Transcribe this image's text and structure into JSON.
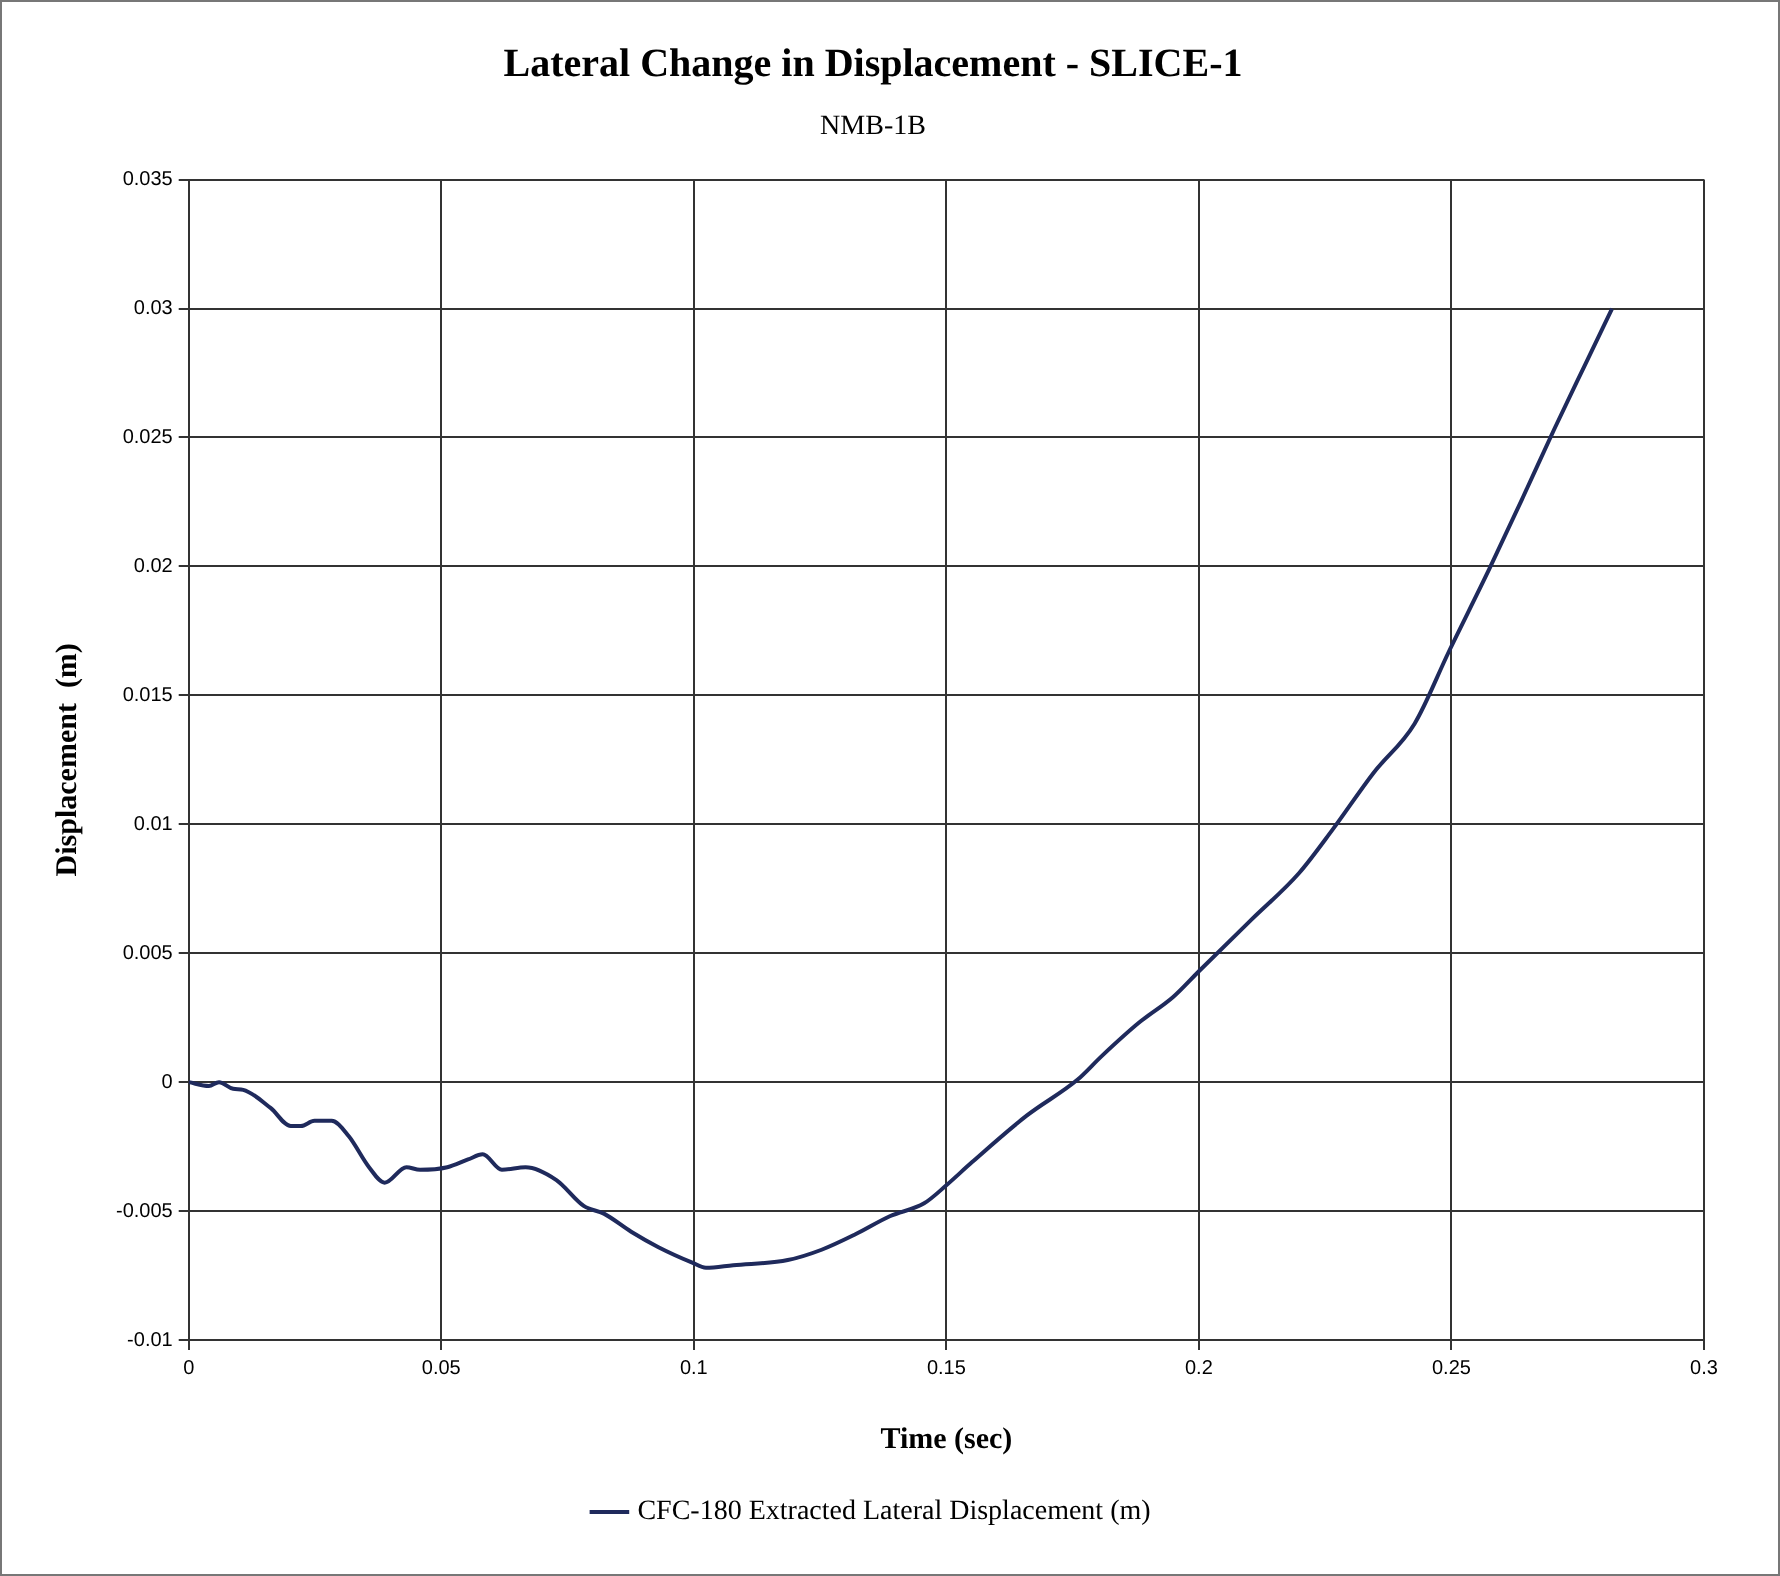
{
  "chart_data": {
    "type": "line",
    "title": "Lateral Change in Displacement - SLICE-1",
    "subtitle": "NMB-1B",
    "xlabel": "Time (sec)",
    "ylabel": "Displacement  (m)",
    "xlim": [
      0,
      0.3
    ],
    "xticks": [
      0,
      0.05,
      0.1,
      0.15,
      0.2,
      0.25,
      0.3
    ],
    "ylim": [
      -0.01,
      0.035
    ],
    "yticks": [
      -0.01,
      -0.005,
      0,
      0.005,
      0.01,
      0.015,
      0.02,
      0.025,
      0.03,
      0.035
    ],
    "grid": true,
    "legend": "bottom",
    "marker": "none",
    "line_style": "solid",
    "series": [
      {
        "name": "CFC-180 Extracted Lateral Displacement (m)",
        "color": "#1f2a5c",
        "x": [
          0,
          0.004,
          0.006,
          0.0088,
          0.0108,
          0.0162,
          0.0202,
          0.0222,
          0.0249,
          0.0283,
          0.0317,
          0.0357,
          0.0388,
          0.0431,
          0.0458,
          0.0512,
          0.0553,
          0.0582,
          0.062,
          0.0667,
          0.0728,
          0.0782,
          0.0822,
          0.0876,
          0.093,
          0.0997,
          0.1024,
          0.1078,
          0.1186,
          0.1253,
          0.132,
          0.1388,
          0.1456,
          0.15,
          0.1551,
          0.1659,
          0.176,
          0.1807,
          0.1881,
          0.1949,
          0.2,
          0.2104,
          0.2198,
          0.2265,
          0.2346,
          0.2427,
          0.2495,
          0.2575,
          0.2642,
          0.2703,
          0.2764,
          0.2818
        ],
        "values": [
          0,
          -0.00015,
          0,
          -0.00026,
          -0.0003,
          -0.001,
          -0.0017,
          -0.0017,
          -0.0015,
          -0.0015,
          -0.0021,
          -0.0033,
          -0.0039,
          -0.0033,
          -0.0034,
          -0.0033,
          -0.003,
          -0.0028,
          -0.0034,
          -0.0033,
          -0.0038,
          -0.0048,
          -0.0051,
          -0.0058,
          -0.0064,
          -0.007,
          -0.0072,
          -0.0071,
          -0.0069,
          -0.0065,
          -0.0059,
          -0.0052,
          -0.0047,
          -0.004,
          -0.0031,
          -0.0013,
          0.0001,
          0.001,
          0.0023,
          0.0033,
          0.0043,
          0.0063,
          0.0081,
          0.0098,
          0.012,
          0.0139,
          0.0167,
          0.0199,
          0.0227,
          0.0253,
          0.0278,
          0.03
        ]
      }
    ]
  }
}
